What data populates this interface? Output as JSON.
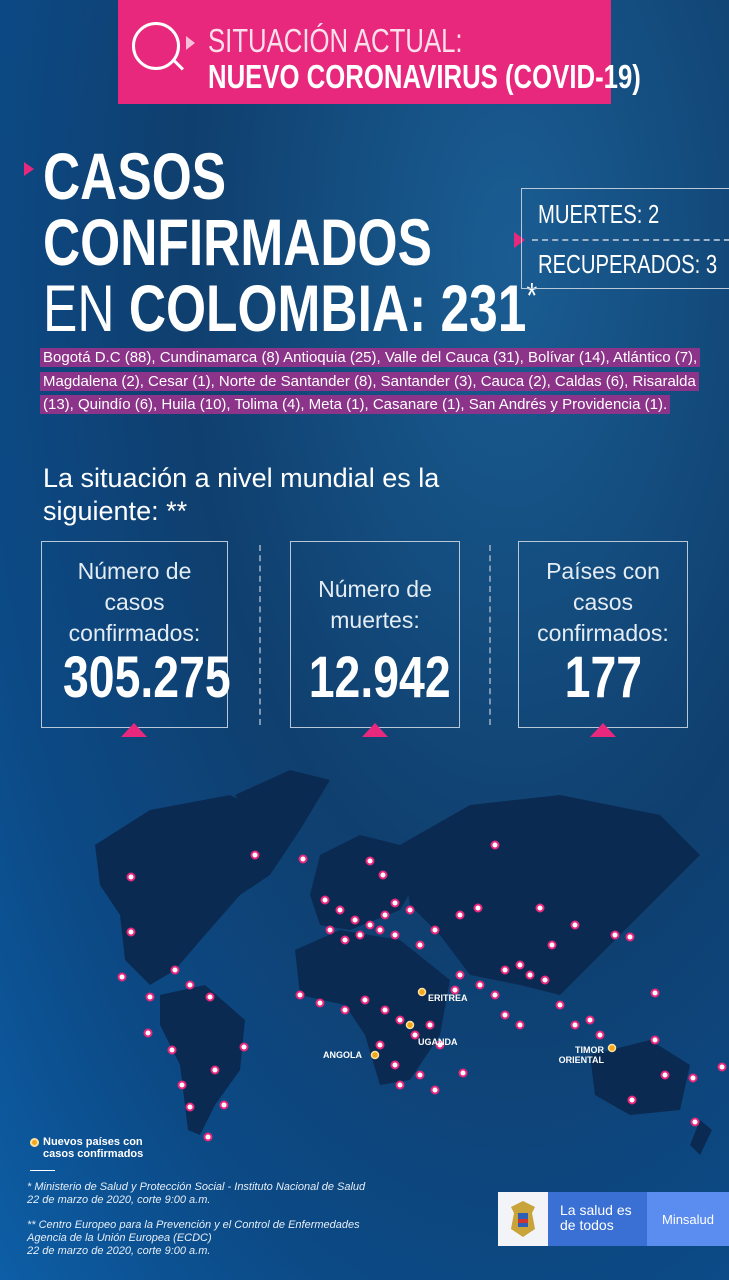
{
  "header": {
    "line1": "SITUACIÓN ACTUAL:",
    "line2": "NUEVO CORONAVIRUS (COVID-19)",
    "icon": "virus-magnifier-icon"
  },
  "title": {
    "line1": "CASOS",
    "line2": "CONFIRMADOS",
    "line3_prefix": "EN ",
    "line3_bold": "COLOMBIA: 231",
    "asterisk": "*"
  },
  "side": {
    "deaths": "MUERTES: 2",
    "recovered": "RECUPERADOS: 3"
  },
  "departments": "Bogotá D.C (88), Cundinamarca (8) Antioquia (25), Valle del Cauca (31), Bolívar (14), Atlántico (7), Magdalena (2), Cesar (1), Norte de Santander (8), Santander (3), Cauca (2), Caldas (6), Risaralda (13), Quindío (6), Huila (10), Tolima (4), Meta (1), Casanare (1), San Andrés y Providencia (1).",
  "world_heading": "La situación a nivel mundial es la siguiente: **",
  "stats": [
    {
      "label": "Número de casos confirmados:",
      "value": "305.275"
    },
    {
      "label": "Número de muertes:",
      "value": "12.942"
    },
    {
      "label": "Países con casos confirmados:",
      "value": "177"
    }
  ],
  "map": {
    "new_countries": [
      "ERITREA",
      "UGANDA",
      "ANGOLA",
      "TIMOR ORIENTAL"
    ],
    "colors": {
      "case": "#e8287d",
      "new": "#f2a71b",
      "land": "#0b2a52"
    }
  },
  "legend": "Nuevos países con casos confirmados",
  "footnotes": [
    {
      "line1": "* Ministerio de Salud y Protección Social - Instituto Nacional de Salud",
      "line2": "22 de marzo de 2020, corte 9:00 a.m."
    },
    {
      "line1": "** Centro Europeo para la Prevención y el Control de Enfermedades",
      "line2": "Agencia de la Unión Europea (ECDC)",
      "line3": "22 de marzo de 2020, corte 9:00 a.m."
    }
  ],
  "logo": {
    "slogan": "La salud es de todos",
    "brand": "Minsalud"
  }
}
